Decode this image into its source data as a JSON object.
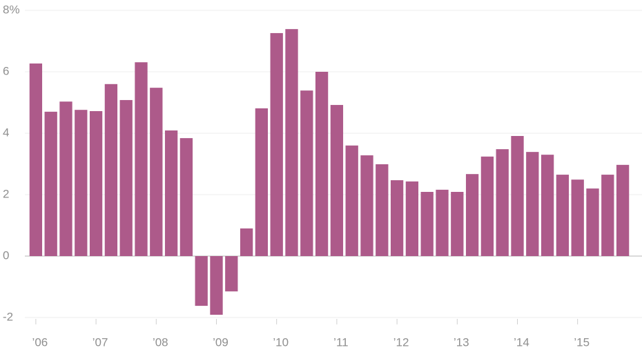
{
  "chart_data": {
    "type": "bar",
    "categories": [
      "’06",
      null,
      null,
      null,
      "’07",
      null,
      null,
      null,
      "’08",
      null,
      null,
      null,
      "’09",
      null,
      null,
      null,
      "’10",
      null,
      null,
      null,
      "’11",
      null,
      null,
      null,
      "’12",
      null,
      null,
      null,
      "’13",
      null,
      null,
      null,
      "’14",
      null,
      null,
      null,
      "’15",
      null,
      null,
      null
    ],
    "values": [
      6.27,
      4.7,
      5.03,
      4.76,
      4.72,
      5.6,
      5.08,
      6.31,
      5.48,
      4.09,
      3.84,
      -1.62,
      -1.91,
      -1.15,
      0.9,
      4.81,
      7.26,
      7.39,
      5.39,
      6.0,
      4.92,
      3.6,
      3.28,
      2.99,
      2.47,
      2.43,
      2.09,
      2.16,
      2.09,
      2.67,
      3.24,
      3.48,
      3.91,
      3.39,
      3.3,
      2.65,
      2.49,
      2.2,
      2.65,
      2.97
    ],
    "color": "#ad5a8a",
    "ylim": [
      -2,
      8
    ],
    "yticks": [
      -2,
      0,
      2,
      4,
      6,
      {
        "value": 8,
        "label": "8%"
      }
    ],
    "grid": true
  }
}
